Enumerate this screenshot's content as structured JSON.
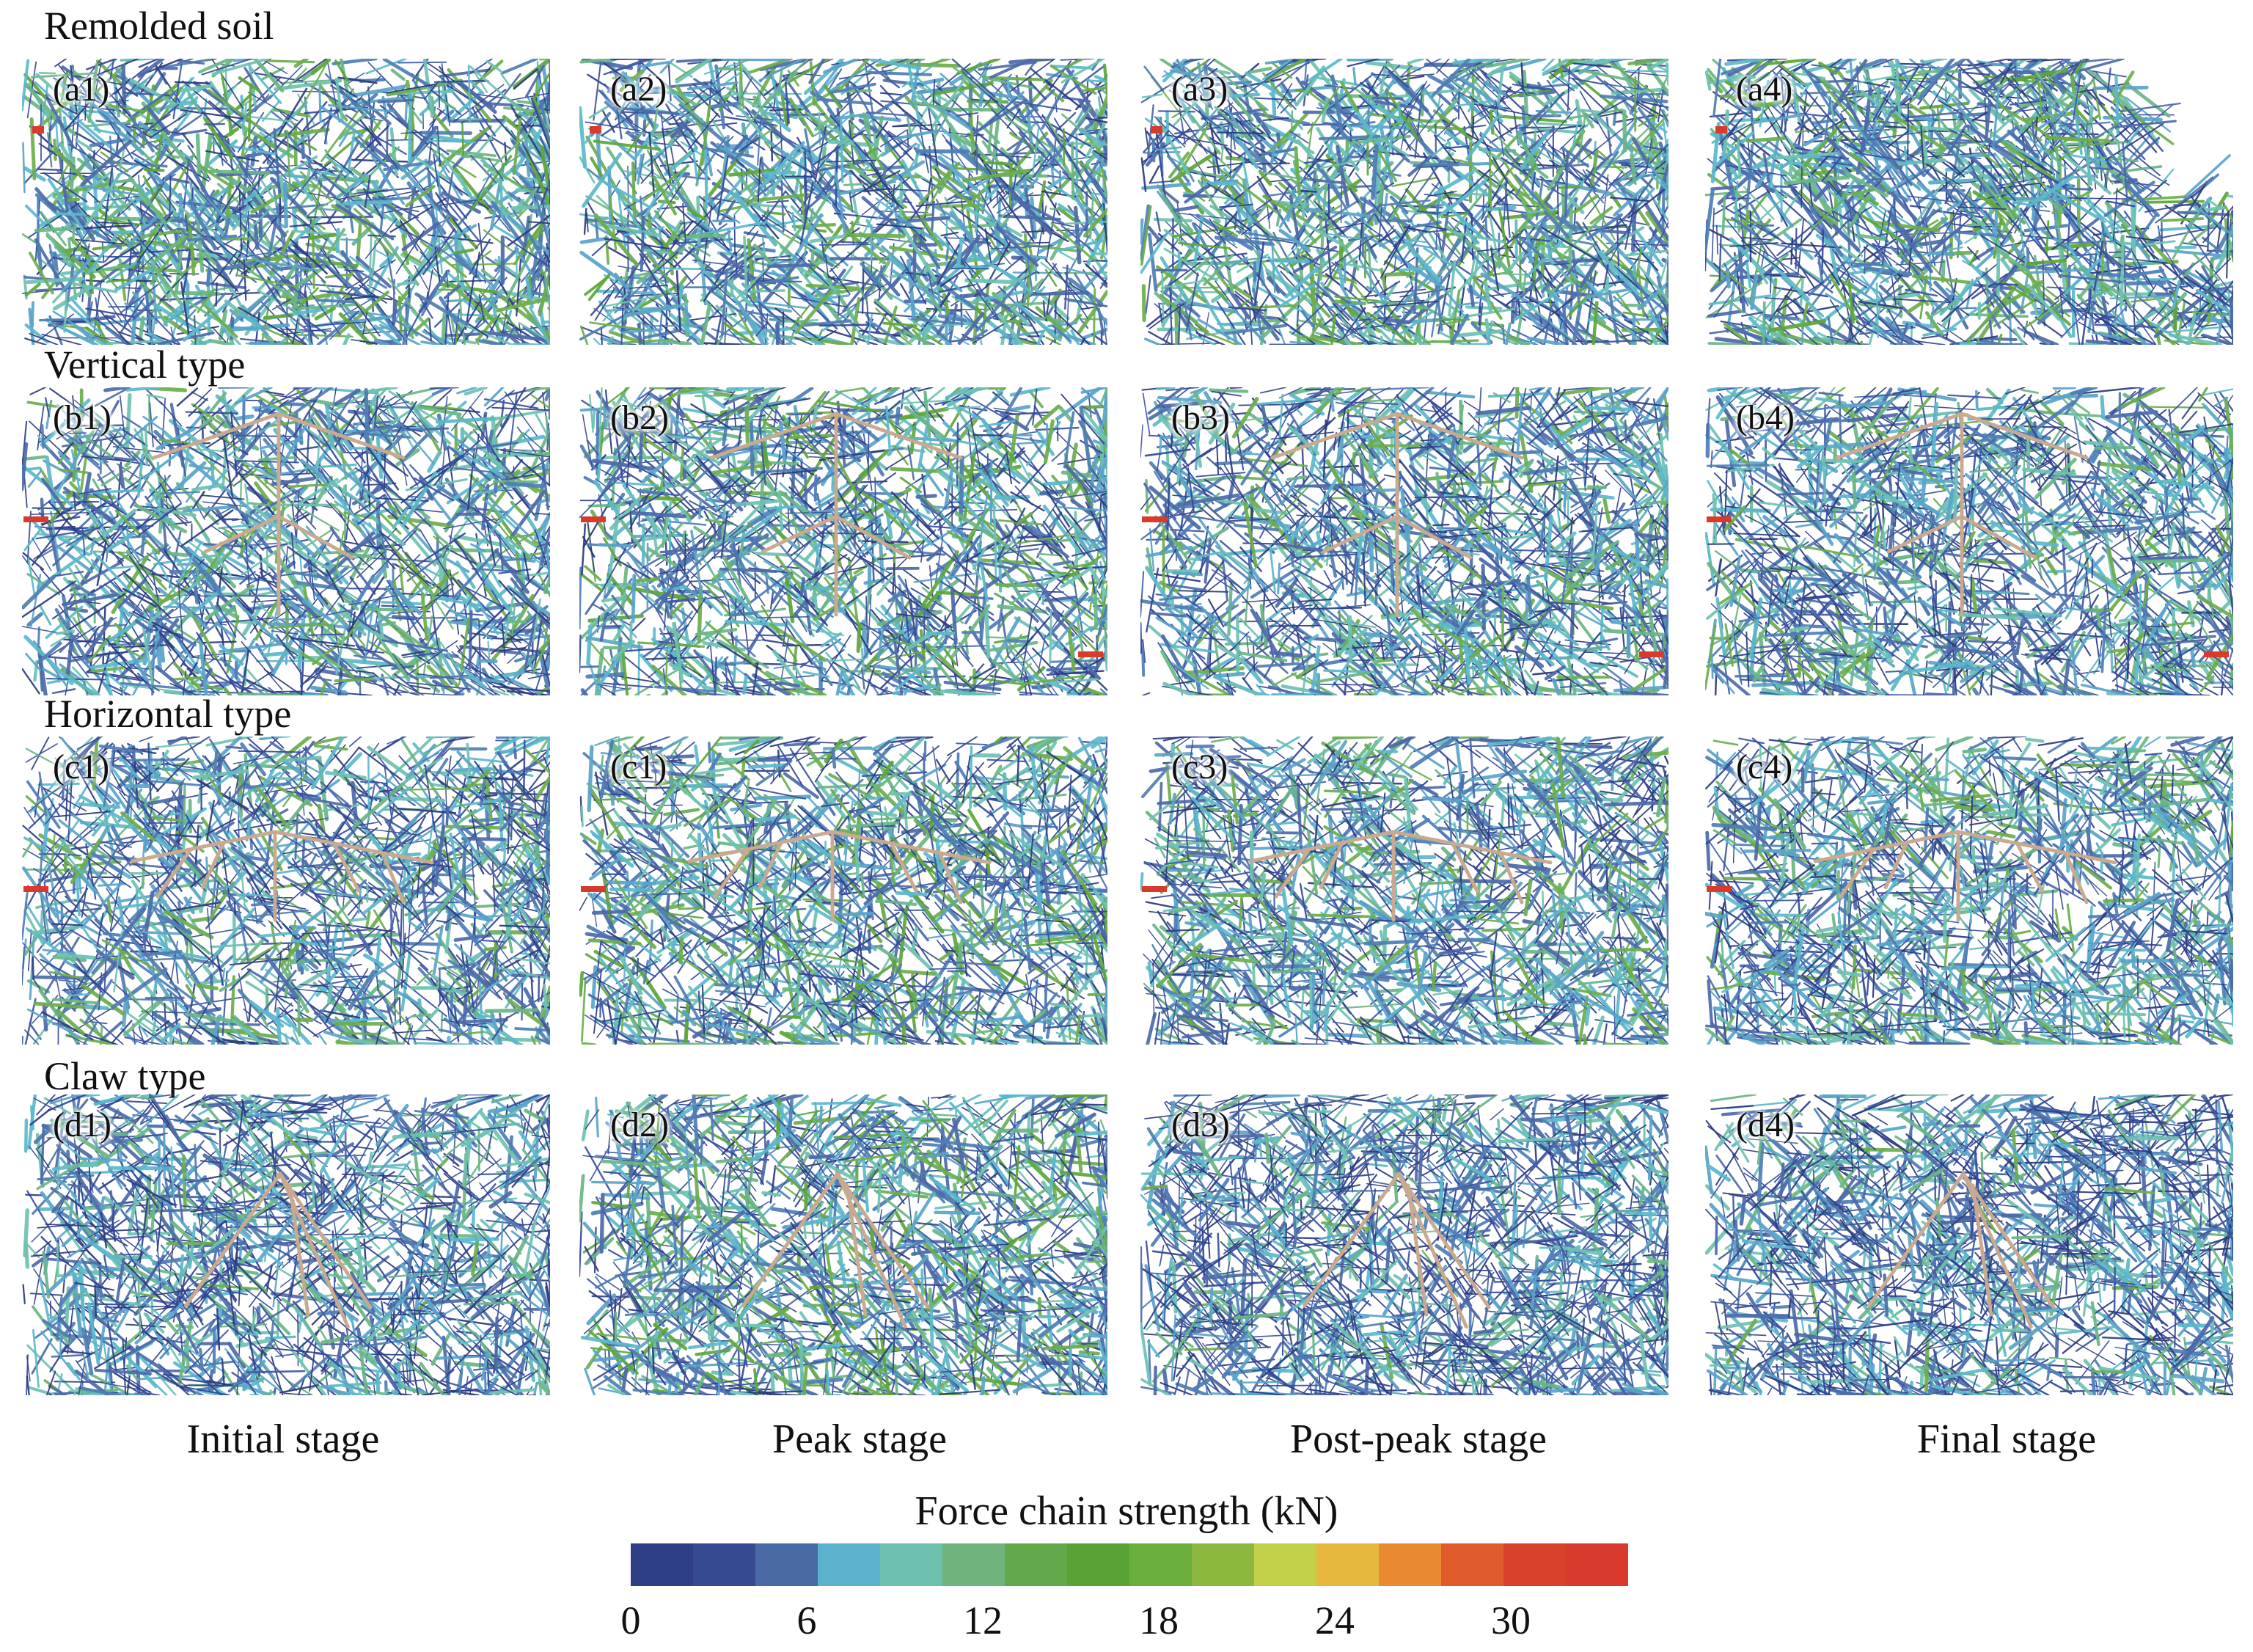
{
  "rows": [
    {
      "title": "Remolded soil",
      "labels": [
        "(a1)",
        "(a2)",
        "(a3)",
        "(a4)"
      ],
      "root": "none"
    },
    {
      "title": "Vertical type",
      "labels": [
        "(b1)",
        "(b2)",
        "(b3)",
        "(b4)"
      ],
      "root": "vertical"
    },
    {
      "title": "Horizontal type",
      "labels": [
        "(c1)",
        "(c1)",
        "(c3)",
        "(c4)"
      ],
      "root": "horizontal"
    },
    {
      "title": "Claw type",
      "labels": [
        "(d1)",
        "(d2)",
        "(d3)",
        "(d4)"
      ],
      "root": "claw"
    }
  ],
  "stages": [
    "Initial stage",
    "Peak stage",
    "Post-peak stage",
    "Final stage"
  ],
  "colorbar": {
    "title": "Force chain strength (kN)",
    "ticks": [
      "0",
      "6",
      "12",
      "18",
      "24",
      "30"
    ],
    "tick_values": [
      0,
      6,
      12,
      18,
      24,
      30
    ],
    "range": [
      0,
      34
    ],
    "bins": 16,
    "colors": [
      "#2e3f86",
      "#364b8f",
      "#4a6aa5",
      "#5bb2cc",
      "#6dbfae",
      "#71b37c",
      "#61a94a",
      "#59a236",
      "#6aaf3c",
      "#8cb840",
      "#c3d04a",
      "#e6b83e",
      "#e98a33",
      "#e05b2c",
      "#d8412b",
      "#d93a2e"
    ]
  }
}
